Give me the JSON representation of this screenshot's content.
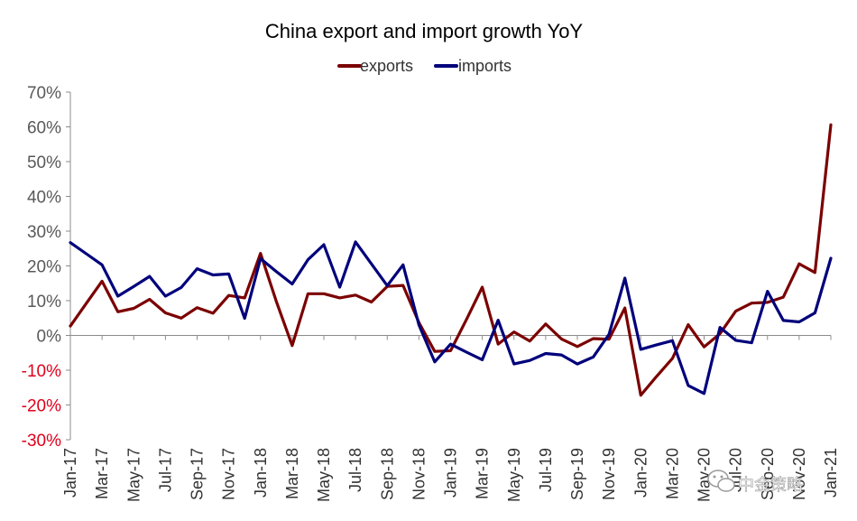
{
  "chart_data": {
    "type": "line",
    "title": "China export and import growth YoY",
    "xlabel": "",
    "ylabel": "",
    "ylim": [
      -30,
      70
    ],
    "y_ticks": [
      "70%",
      "60%",
      "50%",
      "40%",
      "30%",
      "20%",
      "10%",
      "0%",
      "-10%",
      "-20%",
      "-30%"
    ],
    "y_tick_values": [
      70,
      60,
      50,
      40,
      30,
      20,
      10,
      0,
      -10,
      -20,
      -30
    ],
    "x_tick_labels": [
      "Jan-17",
      "Mar-17",
      "May-17",
      "Jul-17",
      "Sep-17",
      "Nov-17",
      "Jan-18",
      "Mar-18",
      "May-18",
      "Jul-18",
      "Sep-18",
      "Nov-18",
      "Jan-19",
      "Mar-19",
      "May-19",
      "Jul-19",
      "Sep-19",
      "Nov-19",
      "Jan-20",
      "Mar-20",
      "May-20",
      "Jul-20",
      "Sep-20",
      "Nov-20",
      "Jan-21"
    ],
    "x": [
      "Jan-17",
      "Feb-17",
      "Mar-17",
      "Apr-17",
      "May-17",
      "Jun-17",
      "Jul-17",
      "Aug-17",
      "Sep-17",
      "Oct-17",
      "Nov-17",
      "Dec-17",
      "Jan-18",
      "Feb-18",
      "Mar-18",
      "Apr-18",
      "May-18",
      "Jun-18",
      "Jul-18",
      "Aug-18",
      "Sep-18",
      "Oct-18",
      "Nov-18",
      "Dec-18",
      "Jan-19",
      "Feb-19",
      "Mar-19",
      "Apr-19",
      "May-19",
      "Jun-19",
      "Jul-19",
      "Aug-19",
      "Sep-19",
      "Oct-19",
      "Nov-19",
      "Dec-19",
      "Jan-20",
      "Feb-20",
      "Mar-20",
      "Apr-20",
      "May-20",
      "Jun-20",
      "Jul-20",
      "Aug-20",
      "Sep-20",
      "Oct-20",
      "Nov-20",
      "Dec-20",
      "Jan-21"
    ],
    "legend_position": "top-center",
    "grid": false,
    "series": [
      {
        "name": "exports",
        "color": "#7b0000",
        "values": [
          2.7,
          9.2,
          15.6,
          6.8,
          7.8,
          10.4,
          6.5,
          5.0,
          8.0,
          6.4,
          11.5,
          10.8,
          23.6,
          9.8,
          -2.9,
          12.0,
          12.0,
          10.8,
          11.6,
          9.6,
          14.1,
          14.4,
          3.7,
          -4.6,
          -4.4,
          4.6,
          13.9,
          -2.5,
          1.0,
          -1.6,
          3.3,
          -1.0,
          -3.2,
          -0.9,
          -1.1,
          7.9,
          -17.2,
          -11.8,
          -6.6,
          3.1,
          -3.3,
          0.5,
          7.0,
          9.3,
          9.5,
          11.0,
          20.6,
          18.1,
          60.6
        ]
      },
      {
        "name": "imports",
        "color": "#00007b",
        "values": [
          26.7,
          23.5,
          20.3,
          11.3,
          14.1,
          17.0,
          11.3,
          13.8,
          19.2,
          17.4,
          17.7,
          4.9,
          22.1,
          18.4,
          14.8,
          21.8,
          26.1,
          13.9,
          26.9,
          20.6,
          14.3,
          20.3,
          3.0,
          -7.6,
          -2.5,
          -4.8,
          -7.0,
          4.4,
          -8.2,
          -7.2,
          -5.2,
          -5.6,
          -8.2,
          -6.2,
          0.3,
          16.5,
          -4.0,
          -2.7,
          -1.5,
          -14.4,
          -16.7,
          2.3,
          -1.4,
          -2.1,
          12.7,
          4.3,
          3.9,
          6.5,
          22.2
        ]
      }
    ]
  },
  "watermark": {
    "text": "中金策略",
    "icon": "wechat-icon"
  }
}
